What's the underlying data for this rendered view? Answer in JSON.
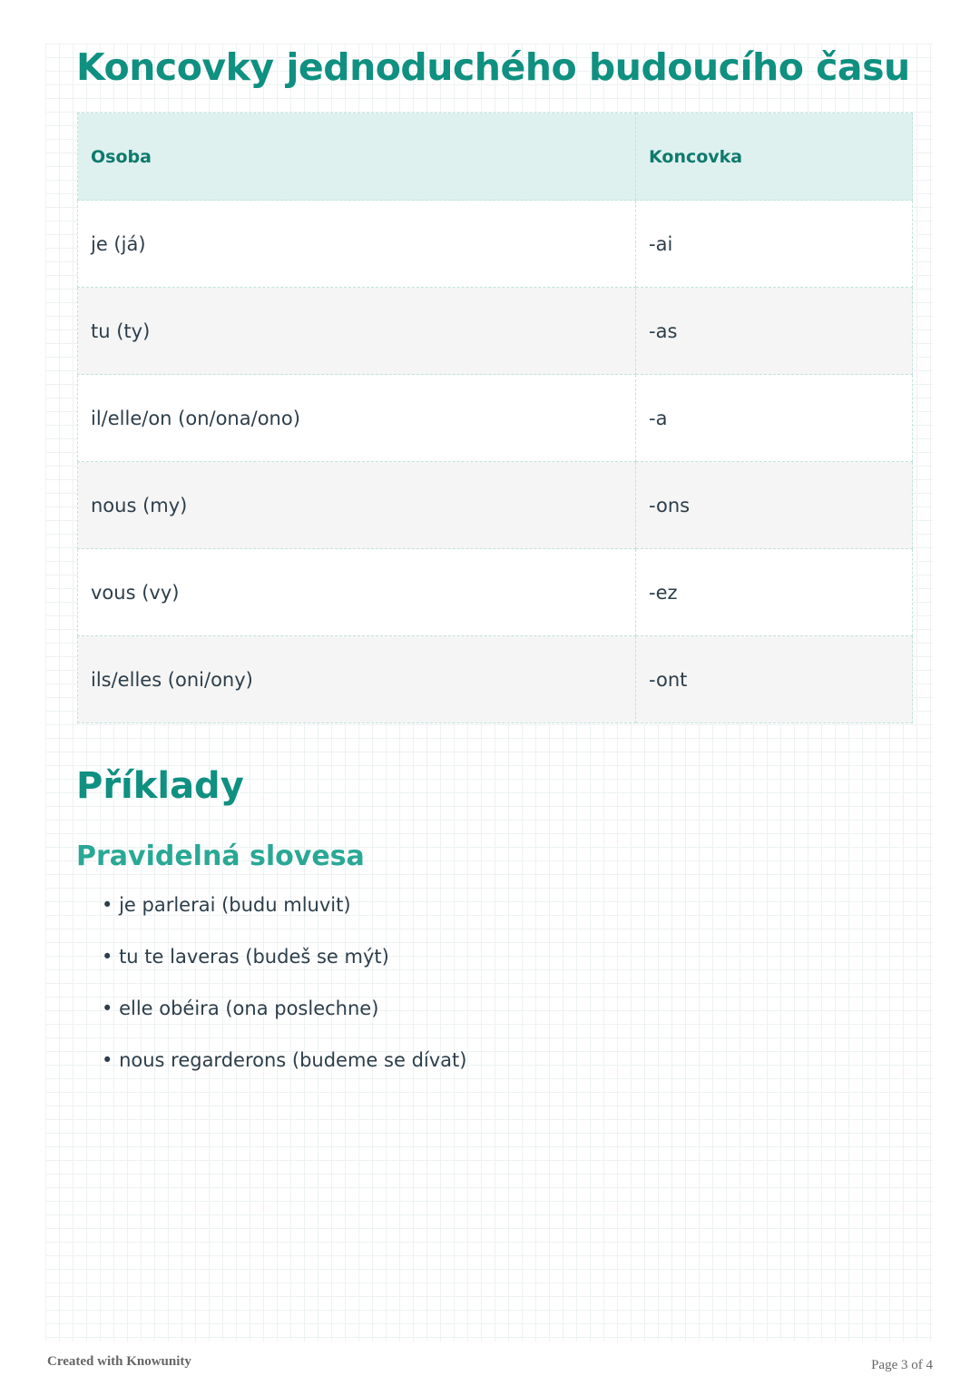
{
  "title": "Koncovky jednoduchého budoucího času",
  "table": {
    "headers": [
      "Osoba",
      "Koncovka"
    ],
    "rows": [
      [
        "je (já)",
        "-ai"
      ],
      [
        "tu (ty)",
        "-as"
      ],
      [
        "il/elle/on (on/ona/ono)",
        "-a"
      ],
      [
        "nous (my)",
        "-ons"
      ],
      [
        "vous (vy)",
        "-ez"
      ],
      [
        "ils/elles (oni/ony)",
        "-ont"
      ]
    ]
  },
  "examples_heading": "Příklady",
  "regular_heading": "Pravidelná slovesa",
  "examples": [
    "je parlerai (budu mluvit)",
    "tu te laveras (budeš se mýt)",
    "elle obéira (ona poslechne)",
    "nous regarderons (budeme se dívat)"
  ],
  "footer": {
    "created": "Created with Knowunity",
    "page": "Page 3 of 4"
  }
}
